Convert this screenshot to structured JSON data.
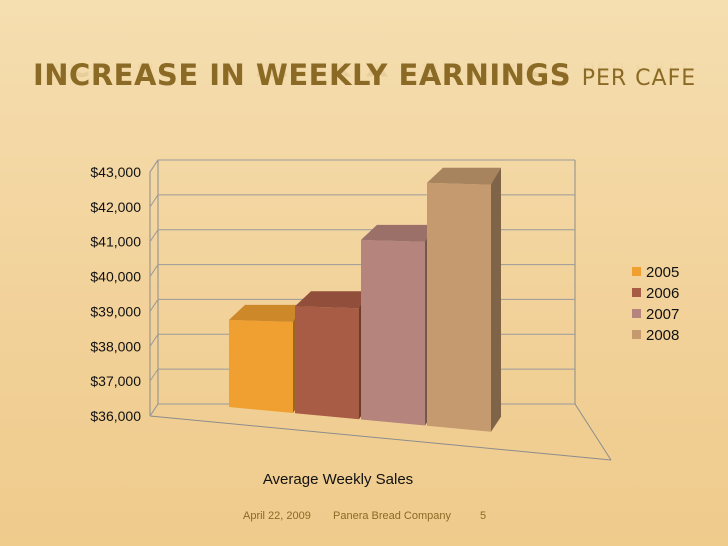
{
  "slide": {
    "title_main": "INCREASE IN WEEKLY EARNINGS",
    "title_suffix": "PER CAFE"
  },
  "footer": {
    "date": "April 22, 2009",
    "company": "Panera Bread Company",
    "page": "5"
  },
  "chart_data": {
    "type": "bar",
    "categories": [
      "Average Weekly Sales"
    ],
    "series": [
      {
        "name": "2005",
        "value": 38400,
        "color": "#f0a030"
      },
      {
        "name": "2006",
        "value": 38950,
        "color": "#a95c45"
      },
      {
        "name": "2007",
        "value": 40950,
        "color": "#b5847c"
      },
      {
        "name": "2008",
        "value": 42700,
        "color": "#c49a6e"
      }
    ],
    "y_ticks": [
      "$36,000",
      "$37,000",
      "$38,000",
      "$39,000",
      "$40,000",
      "$41,000",
      "$42,000",
      "$43,000"
    ],
    "ylim": [
      36000,
      43000
    ],
    "xlabel": "Average Weekly Sales",
    "legend_position": "right",
    "grid": true,
    "style": "3d-columns"
  }
}
